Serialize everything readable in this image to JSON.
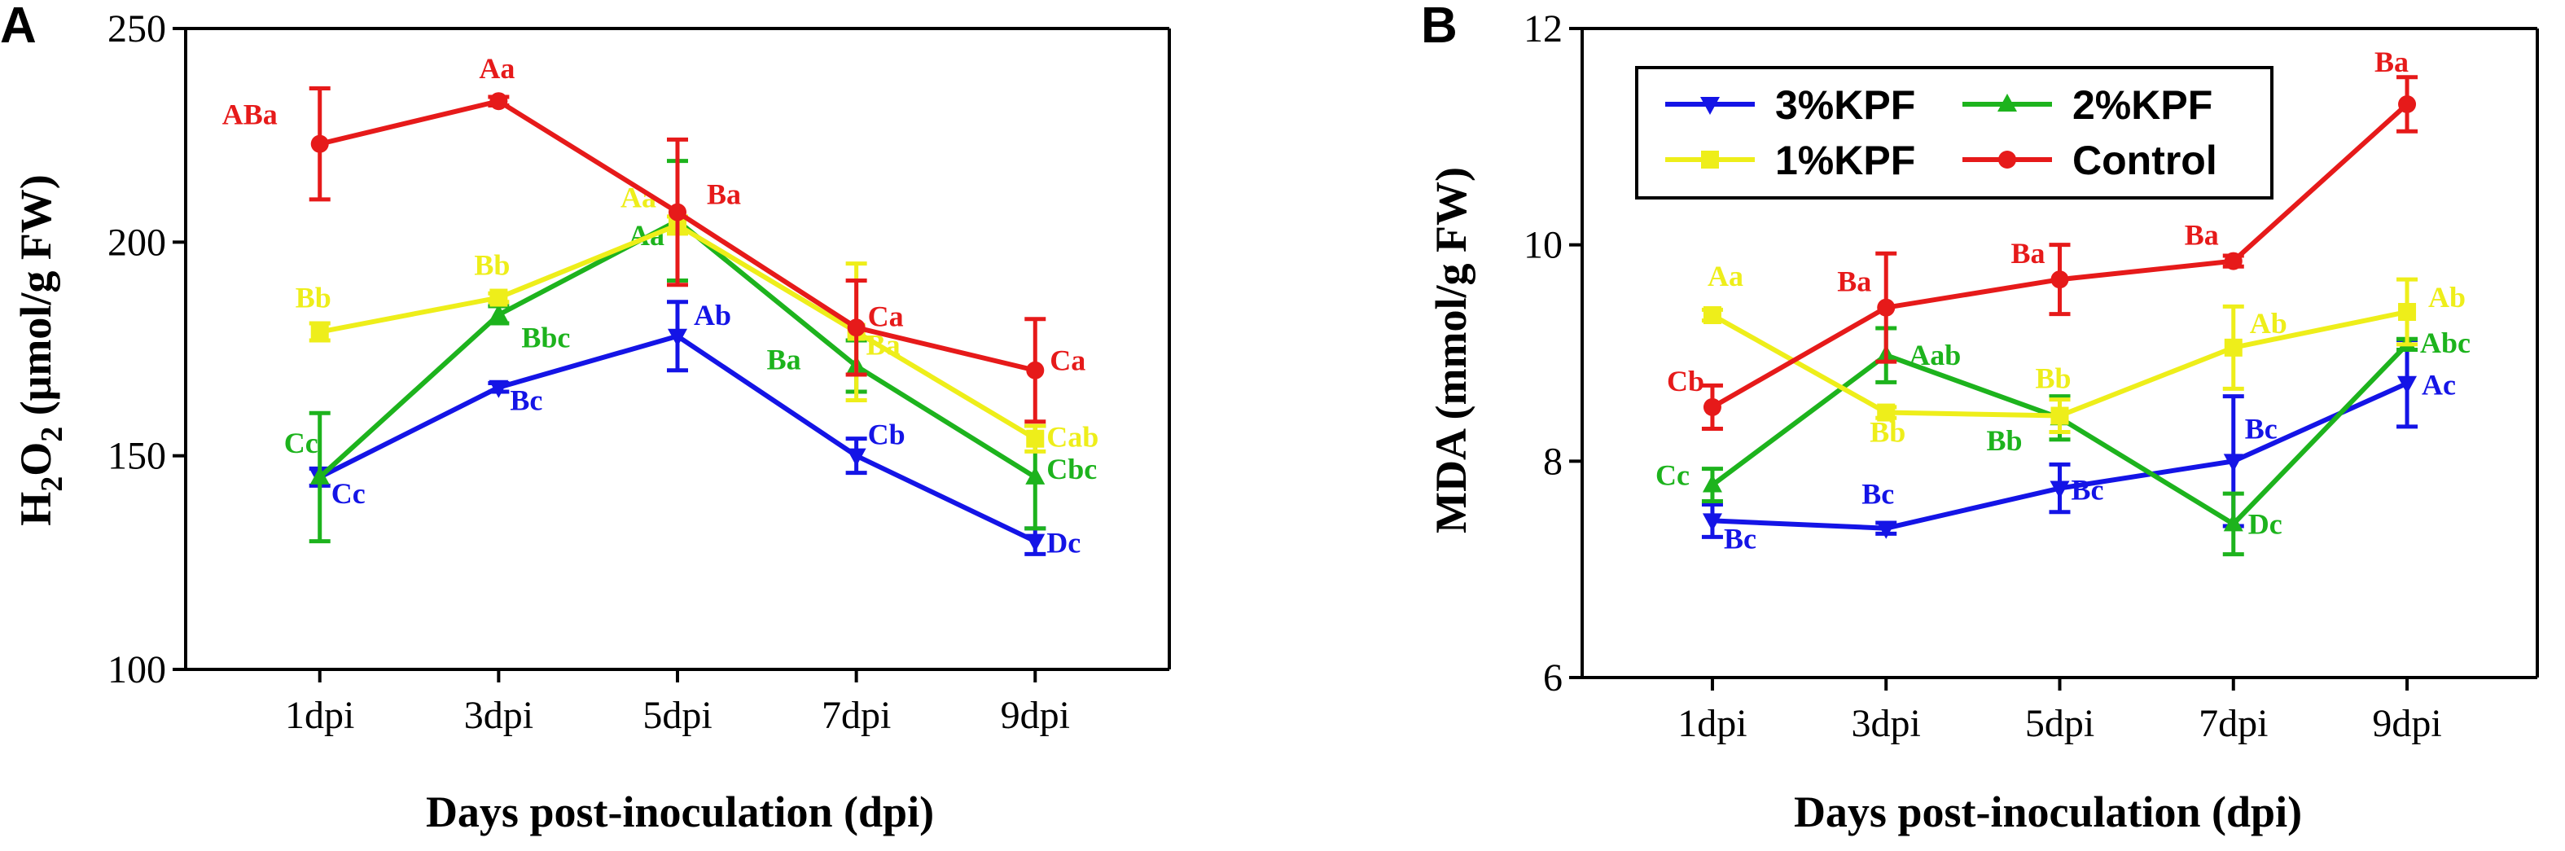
{
  "colors": {
    "3%KPF": "#1414e6",
    "2%KPF": "#1db31d",
    "1%KPF": "#eeee1a",
    "Control": "#e61a1a"
  },
  "chart_data": [
    {
      "type": "line",
      "panel": "A",
      "xlabel": "Days post-inoculation (dpi)",
      "ylabel_parts": {
        "H": "H",
        "sub1": "2",
        "O": "O",
        "sub2": "2",
        "rest": " (μmol/g FW)"
      },
      "ylim": [
        100,
        250
      ],
      "yticks": [
        "100",
        "150",
        "200",
        "250"
      ],
      "categories": [
        "1dpi",
        "3dpi",
        "5dpi",
        "7dpi",
        "9dpi"
      ],
      "series": [
        {
          "name": "3%KPF",
          "marker": "tri-down",
          "values": [
            145,
            166,
            178,
            150,
            130
          ],
          "errors": [
            2,
            1,
            8,
            4,
            3
          ],
          "labels": [
            "Cc",
            "Bc",
            "Ab",
            "Cb",
            "Dc"
          ]
        },
        {
          "name": "2%KPF",
          "marker": "tri-up",
          "values": [
            145,
            183,
            205,
            171,
            145
          ],
          "errors": [
            15,
            2,
            14,
            6,
            12
          ],
          "labels": [
            "Cc",
            "Bbc",
            "Aa",
            "Ba",
            "Cbc"
          ]
        },
        {
          "name": "1%KPF",
          "marker": "square",
          "values": [
            179,
            187,
            204,
            179,
            154
          ],
          "errors": [
            2,
            1,
            2,
            16,
            3
          ],
          "labels": [
            "Bb",
            "Bb",
            "Aa",
            "Ba",
            "Cab"
          ]
        },
        {
          "name": "Control",
          "marker": "circle",
          "values": [
            223,
            233,
            207,
            180,
            170
          ],
          "errors": [
            13,
            1,
            17,
            11,
            12
          ],
          "labels": [
            "ABa",
            "Aa",
            "Ba",
            "Ca",
            "Ca"
          ]
        }
      ]
    },
    {
      "type": "line",
      "panel": "B",
      "xlabel": "Days post-inoculation (dpi)",
      "ylabel": "MDA (mmol/g FW)",
      "ylim": [
        6,
        12
      ],
      "yticks": [
        "6",
        "8",
        "10",
        "12"
      ],
      "categories": [
        "1dpi",
        "3dpi",
        "5dpi",
        "7dpi",
        "9dpi"
      ],
      "series": [
        {
          "name": "3%KPF",
          "marker": "tri-down",
          "values": [
            7.45,
            7.38,
            7.75,
            8.0,
            8.72
          ],
          "errors": [
            0.15,
            0.05,
            0.22,
            0.6,
            0.4
          ],
          "labels": [
            "Bc",
            "Bc",
            "Bc",
            "Bc",
            "Ac"
          ]
        },
        {
          "name": "2%KPF",
          "marker": "tri-up",
          "values": [
            7.78,
            8.98,
            8.4,
            7.42,
            9.08
          ],
          "errors": [
            0.15,
            0.25,
            0.2,
            0.28,
            0.05
          ],
          "labels": [
            "Cc",
            "Aab",
            "Bb",
            "Dc",
            "Abc"
          ]
        },
        {
          "name": "1%KPF",
          "marker": "square",
          "values": [
            9.35,
            8.45,
            8.42,
            9.05,
            9.38
          ],
          "errors": [
            0.05,
            0.05,
            0.15,
            0.38,
            0.3
          ],
          "labels": [
            "Aa",
            "Bb",
            "Bb",
            "Ab",
            "Ab"
          ]
        },
        {
          "name": "Control",
          "marker": "circle",
          "values": [
            8.5,
            9.42,
            9.68,
            9.85,
            11.3
          ],
          "errors": [
            0.2,
            0.5,
            0.32,
            0.05,
            0.25
          ],
          "labels": [
            "Cb",
            "Ba",
            "Ba",
            "Ba",
            "Ba"
          ]
        }
      ],
      "legend": {
        "placement": "top-left",
        "entries": [
          "3%KPF",
          "2%KPF",
          "1%KPF",
          "Control"
        ]
      }
    }
  ]
}
